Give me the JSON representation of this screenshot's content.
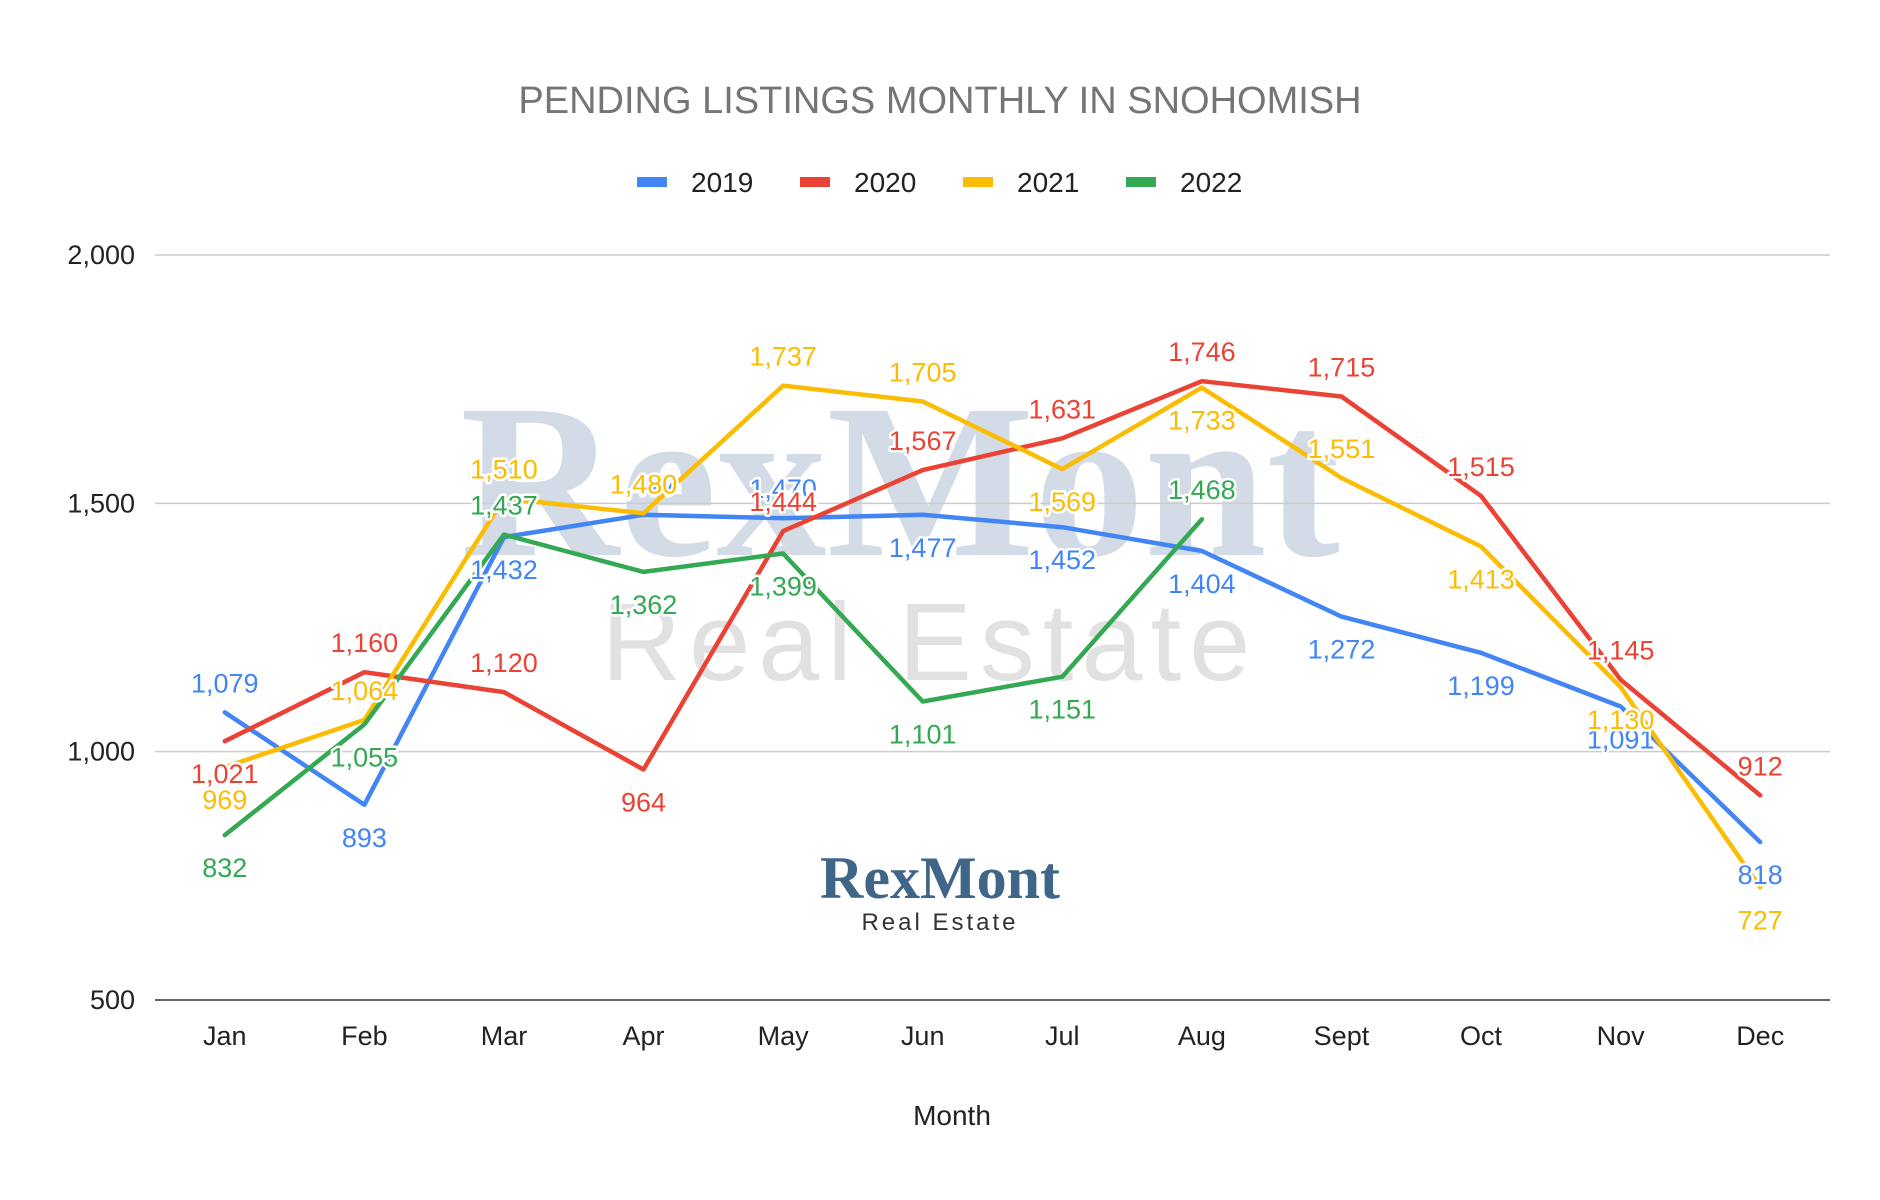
{
  "chart_data": {
    "type": "line",
    "title": "PENDING LISTINGS MONTHLY IN SNOHOMISH",
    "xlabel": "Month",
    "ylabel": "",
    "ylim": [
      500,
      2000
    ],
    "yticks": [
      500,
      1000,
      1500,
      2000
    ],
    "ytick_labels": [
      "500",
      "1,000",
      "1,500",
      "2,000"
    ],
    "grid": true,
    "legend_position": "top",
    "categories": [
      "Jan",
      "Feb",
      "Mar",
      "Apr",
      "May",
      "Jun",
      "Jul",
      "Aug",
      "Sept",
      "Oct",
      "Nov",
      "Dec"
    ],
    "series": [
      {
        "name": "2019",
        "color": "#4285f4",
        "values": [
          1079,
          893,
          1432,
          1477,
          1470,
          1477,
          1452,
          1404,
          1272,
          1199,
          1091,
          818
        ]
      },
      {
        "name": "2020",
        "color": "#ea4335",
        "values": [
          1021,
          1160,
          1120,
          964,
          1444,
          1567,
          1631,
          1746,
          1715,
          1515,
          1145,
          912
        ]
      },
      {
        "name": "2021",
        "color": "#fbbc04",
        "values": [
          969,
          1064,
          1510,
          1480,
          1737,
          1705,
          1569,
          1733,
          1551,
          1413,
          1130,
          727
        ]
      },
      {
        "name": "2022",
        "color": "#34a853",
        "values": [
          832,
          1055,
          1437,
          1362,
          1399,
          1101,
          1151,
          1468,
          null,
          null,
          null,
          null
        ]
      }
    ]
  },
  "watermark": {
    "main": "RexMont",
    "sub": "Real Estate",
    "main_color": "#d3dce6",
    "sub_color": "#e1e1e1"
  },
  "logo": {
    "main": "RexMont",
    "sub": "Real Estate",
    "color": "#3f6688"
  }
}
